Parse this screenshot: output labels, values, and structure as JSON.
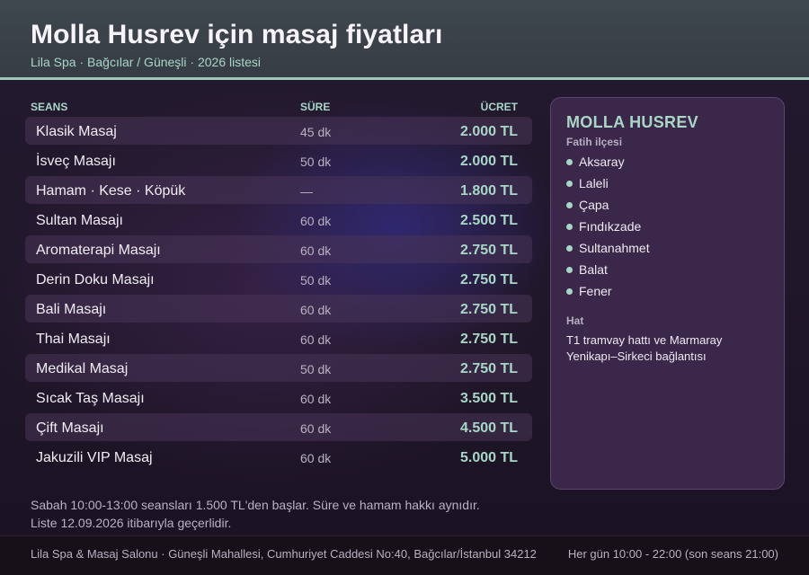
{
  "header": {
    "title": "Molla Husrev için masaj fiyatları",
    "subtitle": "Lila Spa · Bağcılar / Güneşli · 2026 listesi"
  },
  "table": {
    "columns": {
      "name": "SEANS",
      "duration": "SÜRE",
      "price": "ÜCRET"
    },
    "rows": [
      {
        "name": "Klasik Masaj",
        "duration": "45 dk",
        "price": "2.000 TL"
      },
      {
        "name": "İsveç Masajı",
        "duration": "50 dk",
        "price": "2.000 TL"
      },
      {
        "name": "Hamam · Kese · Köpük",
        "duration": "—",
        "price": "1.800 TL"
      },
      {
        "name": "Sultan Masajı",
        "duration": "60 dk",
        "price": "2.500 TL"
      },
      {
        "name": "Aromaterapi Masajı",
        "duration": "60 dk",
        "price": "2.750 TL"
      },
      {
        "name": "Derin Doku Masajı",
        "duration": "50 dk",
        "price": "2.750 TL"
      },
      {
        "name": "Bali Masajı",
        "duration": "60 dk",
        "price": "2.750 TL"
      },
      {
        "name": "Thai Masajı",
        "duration": "60 dk",
        "price": "2.750 TL"
      },
      {
        "name": "Medikal Masaj",
        "duration": "50 dk",
        "price": "2.750 TL"
      },
      {
        "name": "Sıcak Taş Masajı",
        "duration": "60 dk",
        "price": "3.500 TL"
      },
      {
        "name": "Çift Masajı",
        "duration": "60 dk",
        "price": "4.500 TL"
      },
      {
        "name": "Jakuzili VIP Masaj",
        "duration": "60 dk",
        "price": "5.000 TL"
      }
    ]
  },
  "sidebar": {
    "title": "MOLLA HUSREV",
    "subtitle": "Fatih ilçesi",
    "districts": [
      "Aksaray",
      "Laleli",
      "Çapa",
      "Fındıkzade",
      "Sultanahmet",
      "Balat",
      "Fener"
    ],
    "hat_label": "Hat",
    "hat_text": "T1 tramvay hattı ve Marmaray Yenikapı–Sirkeci bağlantısı"
  },
  "note": {
    "line1": "Sabah 10:00-13:00 seansları 1.500 TL'den başlar. Süre ve hamam hakkı aynıdır.",
    "line2": "Liste 12.09.2026 itibarıyla geçerlidir."
  },
  "footer": {
    "address": "Lila Spa & Masaj Salonu · Güneşli Mahallesi, Cumhuriyet Caddesi No:40, Bağcılar/İstanbul 34212",
    "hours": "Her gün 10:00 - 22:00 (son seans 21:00)"
  },
  "colors": {
    "accent": "#a9d6c6",
    "header_bg": "#3f474f",
    "panel_bg": "#3b2749",
    "page_bg": "#1c1424"
  }
}
